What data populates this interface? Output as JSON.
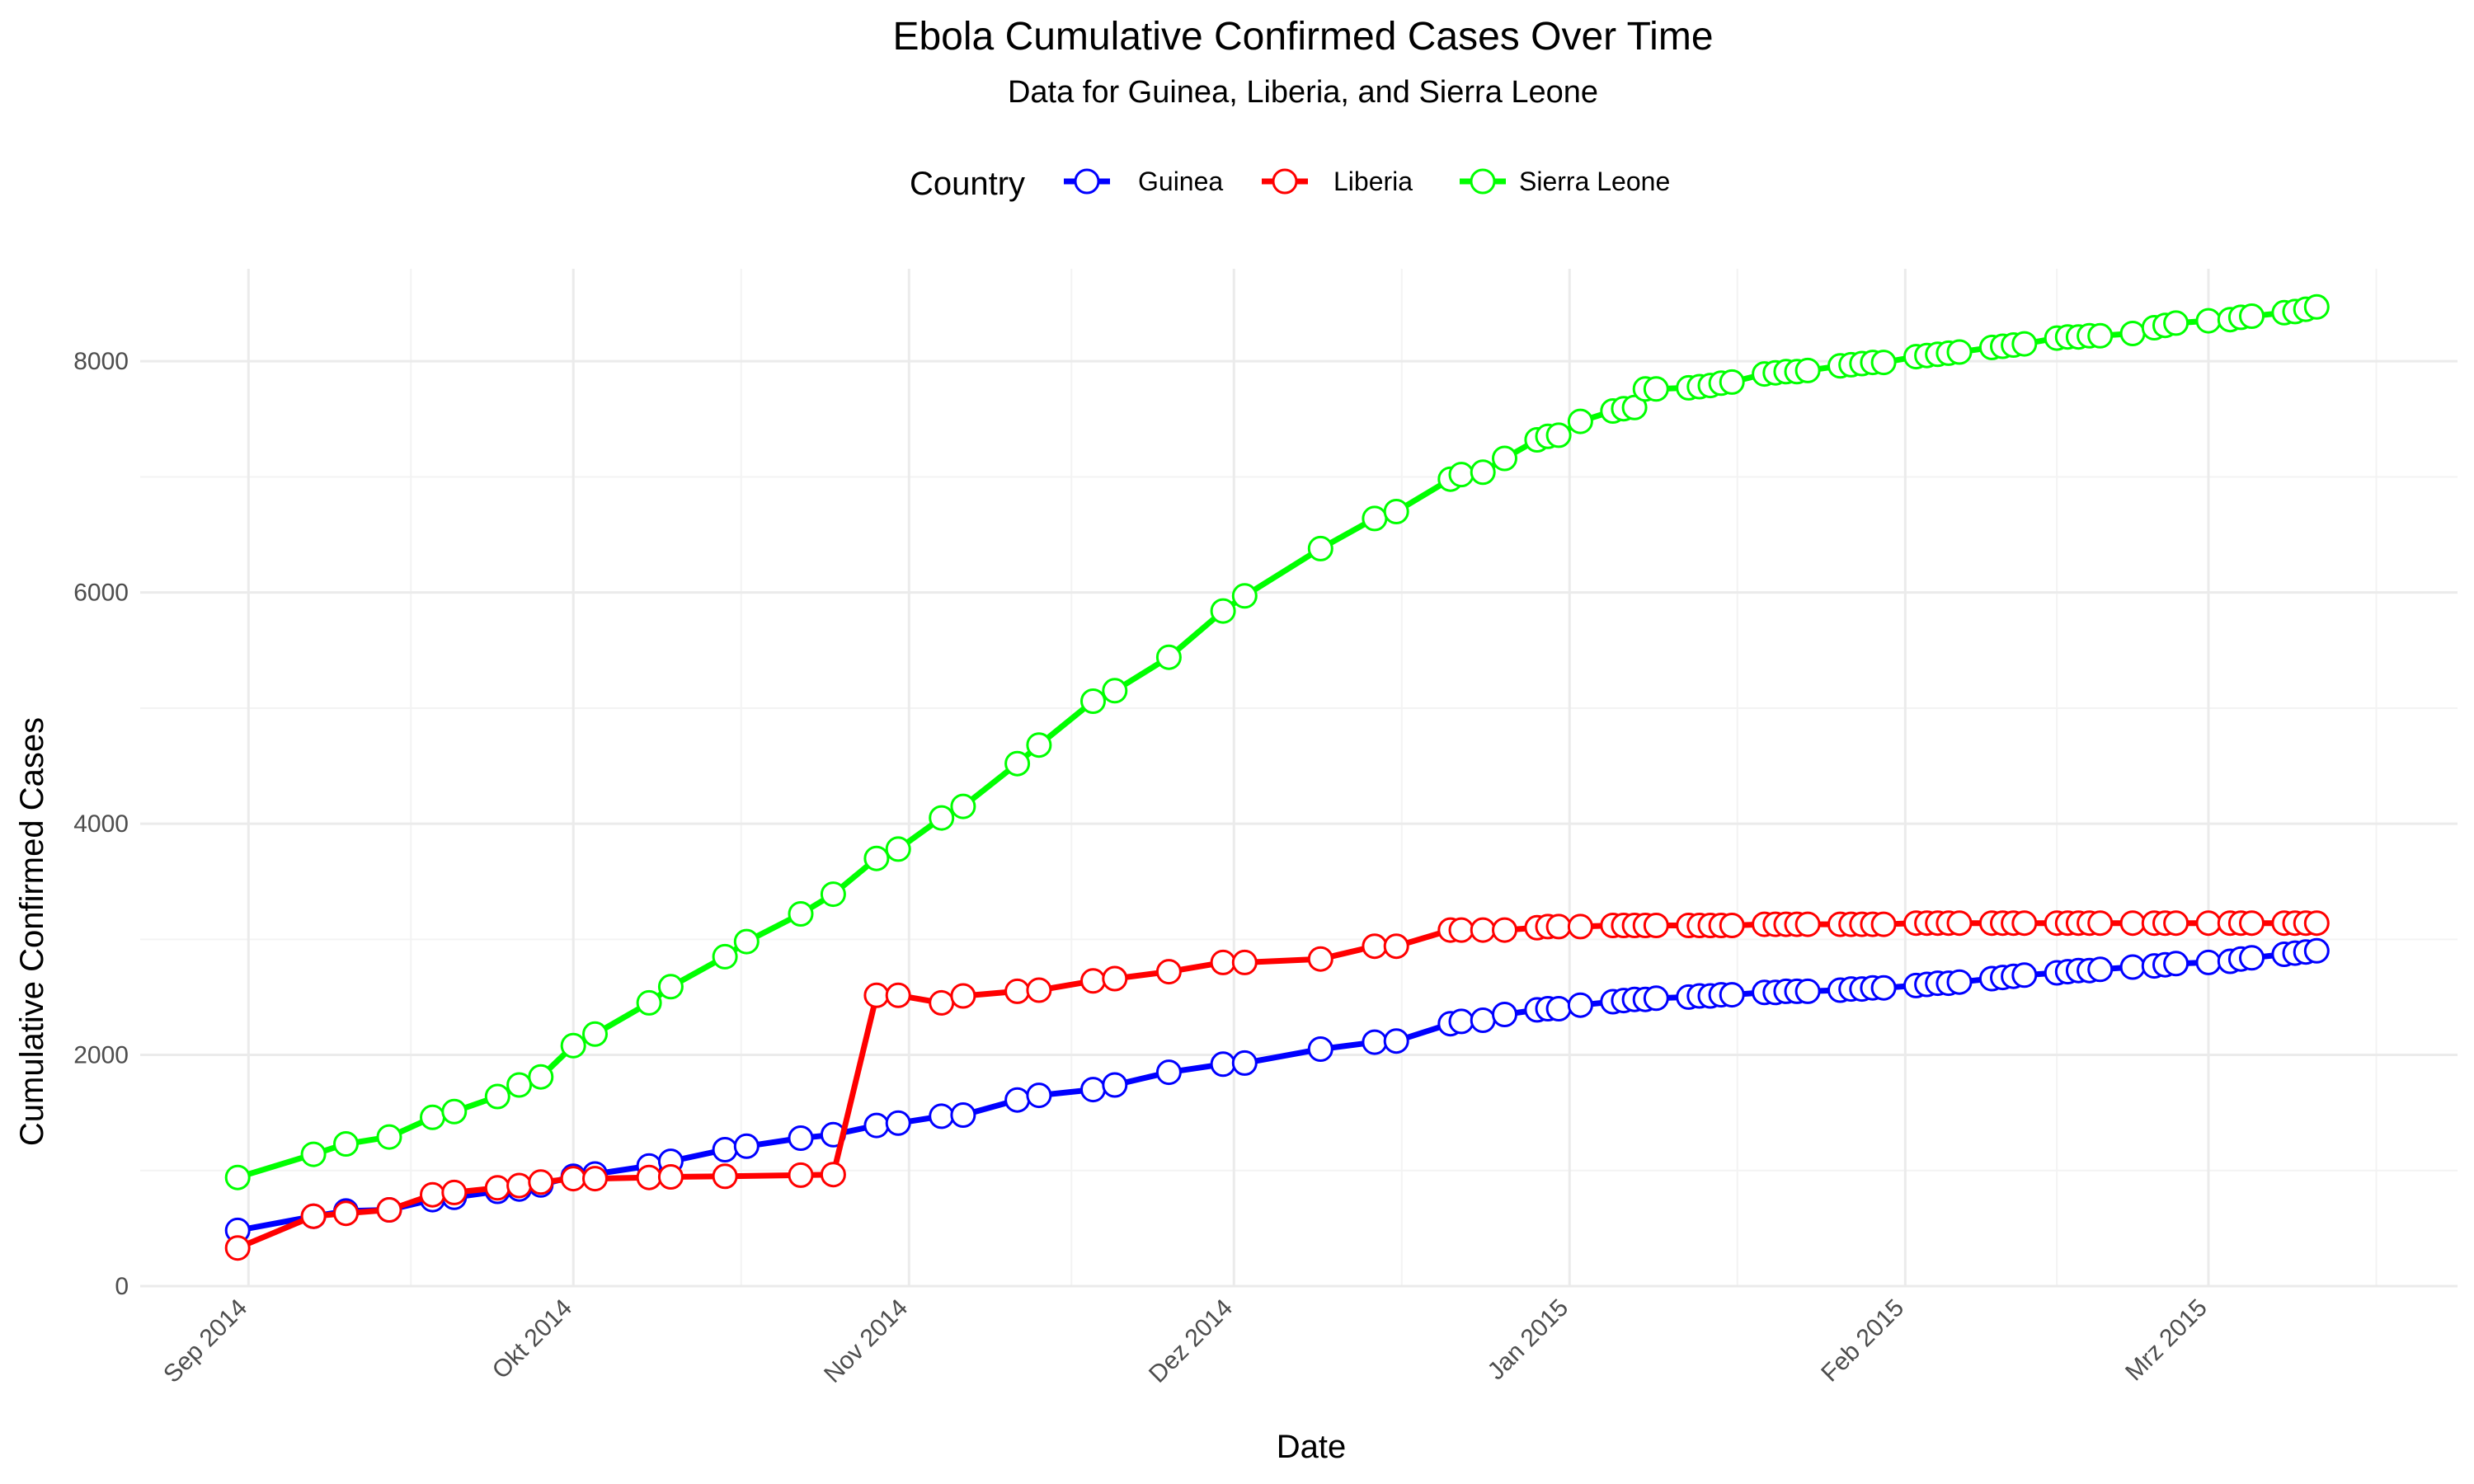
{
  "chart_data": {
    "type": "line",
    "title": "Ebola Cumulative Confirmed Cases Over Time",
    "subtitle": "Data for Guinea, Liberia, and Sierra Leone",
    "xlabel": "Date",
    "ylabel": "Cumulative Confirmed Cases",
    "legend_title": "Country",
    "legend_position": "top",
    "grid": true,
    "xlim": [
      "2014-08-22",
      "2015-03-24"
    ],
    "ylim": [
      0,
      8800
    ],
    "x_ticks": [
      {
        "date": "2014-09-01",
        "label": "Sep 2014"
      },
      {
        "date": "2014-10-01",
        "label": "Okt 2014"
      },
      {
        "date": "2014-11-01",
        "label": "Nov 2014"
      },
      {
        "date": "2014-12-01",
        "label": "Dez 2014"
      },
      {
        "date": "2015-01-01",
        "label": "Jan 2015"
      },
      {
        "date": "2015-02-01",
        "label": "Feb 2015"
      },
      {
        "date": "2015-03-01",
        "label": "Mrz 2015"
      }
    ],
    "y_ticks": [
      0,
      2000,
      4000,
      6000,
      8000
    ],
    "series": [
      {
        "name": "Guinea",
        "color": "#0000ff",
        "points": [
          [
            "2014-08-31",
            482
          ],
          [
            "2014-09-07",
            604
          ],
          [
            "2014-09-10",
            650
          ],
          [
            "2014-09-14",
            660
          ],
          [
            "2014-09-18",
            748
          ],
          [
            "2014-09-20",
            768
          ],
          [
            "2014-09-24",
            820
          ],
          [
            "2014-09-26",
            840
          ],
          [
            "2014-09-28",
            875
          ],
          [
            "2014-10-01",
            950
          ],
          [
            "2014-10-03",
            970
          ],
          [
            "2014-10-08",
            1040
          ],
          [
            "2014-10-10",
            1080
          ],
          [
            "2014-10-15",
            1180
          ],
          [
            "2014-10-17",
            1210
          ],
          [
            "2014-10-22",
            1280
          ],
          [
            "2014-10-25",
            1310
          ],
          [
            "2014-10-29",
            1390
          ],
          [
            "2014-10-31",
            1410
          ],
          [
            "2014-11-04",
            1470
          ],
          [
            "2014-11-06",
            1480
          ],
          [
            "2014-11-11",
            1610
          ],
          [
            "2014-11-13",
            1650
          ],
          [
            "2014-11-18",
            1700
          ],
          [
            "2014-11-20",
            1740
          ],
          [
            "2014-11-25",
            1850
          ],
          [
            "2014-11-30",
            1920
          ],
          [
            "2014-12-02",
            1930
          ],
          [
            "2014-12-09",
            2050
          ],
          [
            "2014-12-14",
            2110
          ],
          [
            "2014-12-16",
            2120
          ],
          [
            "2014-12-21",
            2270
          ],
          [
            "2014-12-22",
            2290
          ],
          [
            "2014-12-24",
            2300
          ],
          [
            "2014-12-26",
            2350
          ],
          [
            "2014-12-29",
            2390
          ],
          [
            "2014-12-30",
            2400
          ],
          [
            "2014-12-31",
            2400
          ],
          [
            "2015-01-02",
            2430
          ],
          [
            "2015-01-05",
            2460
          ],
          [
            "2015-01-06",
            2470
          ],
          [
            "2015-01-07",
            2480
          ],
          [
            "2015-01-08",
            2480
          ],
          [
            "2015-01-09",
            2490
          ],
          [
            "2015-01-12",
            2500
          ],
          [
            "2015-01-13",
            2510
          ],
          [
            "2015-01-14",
            2510
          ],
          [
            "2015-01-15",
            2520
          ],
          [
            "2015-01-16",
            2520
          ],
          [
            "2015-01-19",
            2540
          ],
          [
            "2015-01-20",
            2540
          ],
          [
            "2015-01-21",
            2550
          ],
          [
            "2015-01-22",
            2550
          ],
          [
            "2015-01-23",
            2550
          ],
          [
            "2015-01-26",
            2560
          ],
          [
            "2015-01-27",
            2570
          ],
          [
            "2015-01-28",
            2570
          ],
          [
            "2015-01-29",
            2580
          ],
          [
            "2015-01-30",
            2580
          ],
          [
            "2015-02-02",
            2600
          ],
          [
            "2015-02-03",
            2610
          ],
          [
            "2015-02-04",
            2620
          ],
          [
            "2015-02-05",
            2620
          ],
          [
            "2015-02-06",
            2630
          ],
          [
            "2015-02-09",
            2660
          ],
          [
            "2015-02-10",
            2670
          ],
          [
            "2015-02-11",
            2680
          ],
          [
            "2015-02-12",
            2690
          ],
          [
            "2015-02-15",
            2710
          ],
          [
            "2015-02-16",
            2720
          ],
          [
            "2015-02-17",
            2730
          ],
          [
            "2015-02-18",
            2730
          ],
          [
            "2015-02-19",
            2740
          ],
          [
            "2015-02-22",
            2760
          ],
          [
            "2015-02-24",
            2770
          ],
          [
            "2015-02-25",
            2780
          ],
          [
            "2015-02-26",
            2790
          ],
          [
            "2015-03-01",
            2800
          ],
          [
            "2015-03-03",
            2810
          ],
          [
            "2015-03-04",
            2830
          ],
          [
            "2015-03-05",
            2840
          ],
          [
            "2015-03-08",
            2870
          ],
          [
            "2015-03-09",
            2880
          ],
          [
            "2015-03-10",
            2890
          ],
          [
            "2015-03-11",
            2900
          ]
        ]
      },
      {
        "name": "Liberia",
        "color": "#ff0000",
        "points": [
          [
            "2014-08-31",
            330
          ],
          [
            "2014-09-07",
            605
          ],
          [
            "2014-09-10",
            630
          ],
          [
            "2014-09-14",
            660
          ],
          [
            "2014-09-18",
            790
          ],
          [
            "2014-09-20",
            810
          ],
          [
            "2014-09-24",
            850
          ],
          [
            "2014-09-26",
            870
          ],
          [
            "2014-09-28",
            900
          ],
          [
            "2014-10-01",
            930
          ],
          [
            "2014-10-03",
            930
          ],
          [
            "2014-10-08",
            940
          ],
          [
            "2014-10-10",
            945
          ],
          [
            "2014-10-15",
            950
          ],
          [
            "2014-10-22",
            960
          ],
          [
            "2014-10-25",
            965
          ],
          [
            "2014-10-29",
            2515
          ],
          [
            "2014-10-31",
            2515
          ],
          [
            "2014-11-04",
            2450
          ],
          [
            "2014-11-06",
            2510
          ],
          [
            "2014-11-11",
            2550
          ],
          [
            "2014-11-13",
            2560
          ],
          [
            "2014-11-18",
            2640
          ],
          [
            "2014-11-20",
            2660
          ],
          [
            "2014-11-25",
            2720
          ],
          [
            "2014-11-30",
            2800
          ],
          [
            "2014-12-02",
            2800
          ],
          [
            "2014-12-09",
            2830
          ],
          [
            "2014-12-14",
            2940
          ],
          [
            "2014-12-16",
            2940
          ],
          [
            "2014-12-21",
            3080
          ],
          [
            "2014-12-22",
            3080
          ],
          [
            "2014-12-24",
            3080
          ],
          [
            "2014-12-26",
            3080
          ],
          [
            "2014-12-29",
            3100
          ],
          [
            "2014-12-30",
            3110
          ],
          [
            "2014-12-31",
            3110
          ],
          [
            "2015-01-02",
            3110
          ],
          [
            "2015-01-05",
            3120
          ],
          [
            "2015-01-06",
            3120
          ],
          [
            "2015-01-07",
            3120
          ],
          [
            "2015-01-08",
            3120
          ],
          [
            "2015-01-09",
            3120
          ],
          [
            "2015-01-12",
            3120
          ],
          [
            "2015-01-13",
            3120
          ],
          [
            "2015-01-14",
            3120
          ],
          [
            "2015-01-15",
            3120
          ],
          [
            "2015-01-16",
            3120
          ],
          [
            "2015-01-19",
            3130
          ],
          [
            "2015-01-20",
            3130
          ],
          [
            "2015-01-21",
            3130
          ],
          [
            "2015-01-22",
            3130
          ],
          [
            "2015-01-23",
            3130
          ],
          [
            "2015-01-26",
            3130
          ],
          [
            "2015-01-27",
            3130
          ],
          [
            "2015-01-28",
            3130
          ],
          [
            "2015-01-29",
            3130
          ],
          [
            "2015-01-30",
            3130
          ],
          [
            "2015-02-02",
            3140
          ],
          [
            "2015-02-03",
            3140
          ],
          [
            "2015-02-04",
            3140
          ],
          [
            "2015-02-05",
            3140
          ],
          [
            "2015-02-06",
            3140
          ],
          [
            "2015-02-09",
            3140
          ],
          [
            "2015-02-10",
            3140
          ],
          [
            "2015-02-11",
            3140
          ],
          [
            "2015-02-12",
            3140
          ],
          [
            "2015-02-15",
            3140
          ],
          [
            "2015-02-16",
            3140
          ],
          [
            "2015-02-17",
            3140
          ],
          [
            "2015-02-18",
            3140
          ],
          [
            "2015-02-19",
            3140
          ],
          [
            "2015-02-22",
            3140
          ],
          [
            "2015-02-24",
            3140
          ],
          [
            "2015-02-25",
            3140
          ],
          [
            "2015-02-26",
            3140
          ],
          [
            "2015-03-01",
            3140
          ],
          [
            "2015-03-03",
            3140
          ],
          [
            "2015-03-04",
            3140
          ],
          [
            "2015-03-05",
            3140
          ],
          [
            "2015-03-08",
            3140
          ],
          [
            "2015-03-09",
            3140
          ],
          [
            "2015-03-10",
            3140
          ],
          [
            "2015-03-11",
            3140
          ]
        ]
      },
      {
        "name": "Sierra Leone",
        "color": "#00ff00",
        "points": [
          [
            "2014-08-31",
            940
          ],
          [
            "2014-09-07",
            1140
          ],
          [
            "2014-09-10",
            1230
          ],
          [
            "2014-09-14",
            1290
          ],
          [
            "2014-09-18",
            1460
          ],
          [
            "2014-09-20",
            1510
          ],
          [
            "2014-09-24",
            1640
          ],
          [
            "2014-09-26",
            1740
          ],
          [
            "2014-09-28",
            1810
          ],
          [
            "2014-10-01",
            2080
          ],
          [
            "2014-10-03",
            2180
          ],
          [
            "2014-10-08",
            2450
          ],
          [
            "2014-10-10",
            2590
          ],
          [
            "2014-10-15",
            2850
          ],
          [
            "2014-10-17",
            2980
          ],
          [
            "2014-10-22",
            3220
          ],
          [
            "2014-10-25",
            3390
          ],
          [
            "2014-10-29",
            3700
          ],
          [
            "2014-10-31",
            3780
          ],
          [
            "2014-11-04",
            4050
          ],
          [
            "2014-11-06",
            4150
          ],
          [
            "2014-11-11",
            4520
          ],
          [
            "2014-11-13",
            4680
          ],
          [
            "2014-11-18",
            5060
          ],
          [
            "2014-11-20",
            5150
          ],
          [
            "2014-11-25",
            5440
          ],
          [
            "2014-11-30",
            5840
          ],
          [
            "2014-12-02",
            5970
          ],
          [
            "2014-12-09",
            6380
          ],
          [
            "2014-12-14",
            6640
          ],
          [
            "2014-12-16",
            6700
          ],
          [
            "2014-12-21",
            6980
          ],
          [
            "2014-12-22",
            7020
          ],
          [
            "2014-12-24",
            7040
          ],
          [
            "2014-12-26",
            7160
          ],
          [
            "2014-12-29",
            7320
          ],
          [
            "2014-12-30",
            7350
          ],
          [
            "2014-12-31",
            7360
          ],
          [
            "2015-01-02",
            7480
          ],
          [
            "2015-01-05",
            7570
          ],
          [
            "2015-01-06",
            7590
          ],
          [
            "2015-01-07",
            7600
          ],
          [
            "2015-01-08",
            7760
          ],
          [
            "2015-01-09",
            7760
          ],
          [
            "2015-01-12",
            7770
          ],
          [
            "2015-01-13",
            7780
          ],
          [
            "2015-01-14",
            7790
          ],
          [
            "2015-01-15",
            7810
          ],
          [
            "2015-01-16",
            7820
          ],
          [
            "2015-01-19",
            7890
          ],
          [
            "2015-01-20",
            7900
          ],
          [
            "2015-01-21",
            7910
          ],
          [
            "2015-01-22",
            7910
          ],
          [
            "2015-01-23",
            7920
          ],
          [
            "2015-01-26",
            7960
          ],
          [
            "2015-01-27",
            7970
          ],
          [
            "2015-01-28",
            7980
          ],
          [
            "2015-01-29",
            7990
          ],
          [
            "2015-01-30",
            7990
          ],
          [
            "2015-02-02",
            8040
          ],
          [
            "2015-02-03",
            8050
          ],
          [
            "2015-02-04",
            8060
          ],
          [
            "2015-02-05",
            8070
          ],
          [
            "2015-02-06",
            8080
          ],
          [
            "2015-02-09",
            8120
          ],
          [
            "2015-02-10",
            8130
          ],
          [
            "2015-02-11",
            8140
          ],
          [
            "2015-02-12",
            8150
          ],
          [
            "2015-02-15",
            8200
          ],
          [
            "2015-02-16",
            8210
          ],
          [
            "2015-02-17",
            8210
          ],
          [
            "2015-02-18",
            8220
          ],
          [
            "2015-02-19",
            8220
          ],
          [
            "2015-02-22",
            8240
          ],
          [
            "2015-02-24",
            8290
          ],
          [
            "2015-02-25",
            8310
          ],
          [
            "2015-02-26",
            8330
          ],
          [
            "2015-03-01",
            8350
          ],
          [
            "2015-03-03",
            8360
          ],
          [
            "2015-03-04",
            8380
          ],
          [
            "2015-03-05",
            8390
          ],
          [
            "2015-03-08",
            8420
          ],
          [
            "2015-03-09",
            8430
          ],
          [
            "2015-03-10",
            8450
          ],
          [
            "2015-03-11",
            8470
          ]
        ]
      }
    ]
  }
}
